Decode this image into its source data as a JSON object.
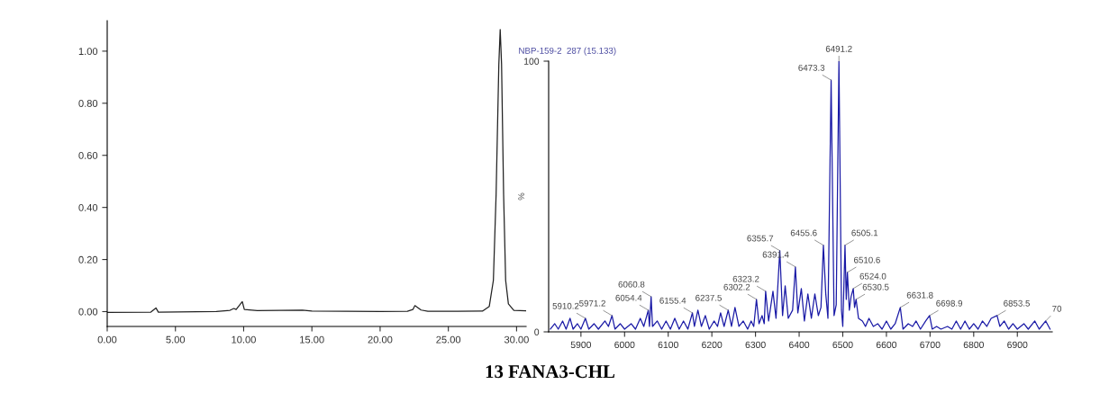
{
  "chart_data": [
    {
      "type": "line",
      "xlim": [
        0,
        30.7
      ],
      "ylim": [
        -0.057,
        1.117
      ],
      "xticks": [
        {
          "value": 0,
          "label": "0.00"
        },
        {
          "value": 5,
          "label": "5.00"
        },
        {
          "value": 10,
          "label": "10.00"
        },
        {
          "value": 15,
          "label": "15.00"
        },
        {
          "value": 20,
          "label": "20.00"
        },
        {
          "value": 25,
          "label": "25.00"
        },
        {
          "value": 30,
          "label": "30.00"
        }
      ],
      "yticks": [
        {
          "value": 0,
          "label": "0.00"
        },
        {
          "value": 0.2,
          "label": "0.20"
        },
        {
          "value": 0.4,
          "label": "0.40"
        },
        {
          "value": 0.6,
          "label": "0.60"
        },
        {
          "value": 0.8,
          "label": "0.80"
        },
        {
          "value": 1.0,
          "label": "1.00"
        }
      ],
      "grid": false,
      "legend": false,
      "annotations": [
        "13 FANA3-CHL"
      ],
      "series": [
        {
          "color": "#222222",
          "x": [
            0,
            3.2,
            3.57,
            3.75,
            8,
            9.0,
            9.28,
            9.45,
            9.9,
            10.05,
            11,
            14.3,
            15,
            20,
            22,
            22.4,
            22.55,
            23.0,
            23.5,
            27.5,
            28.0,
            28.3,
            28.5,
            28.7,
            28.8,
            28.9,
            29.05,
            29.2,
            29.4,
            29.8,
            30.7
          ],
          "values": [
            -0.003,
            -0.002,
            0.014,
            -0.002,
            0,
            0.005,
            0.012,
            0.008,
            0.038,
            0.008,
            0.004,
            0.006,
            0.002,
            0.0,
            0.001,
            0.008,
            0.023,
            0.006,
            0.001,
            0.002,
            0.02,
            0.12,
            0.45,
            0.95,
            1.083,
            0.95,
            0.45,
            0.12,
            0.03,
            0.005,
            0.003
          ]
        }
      ]
    },
    {
      "type": "line",
      "title": "NBP-159-2  287 (15.133)",
      "ylabel": "%",
      "xlim": [
        5826,
        6980
      ],
      "ylim": [
        0,
        100
      ],
      "xticks": [
        5900,
        6000,
        6100,
        6200,
        6300,
        6400,
        6500,
        6600,
        6700,
        6800,
        6900
      ],
      "yticks": [
        0,
        100
      ],
      "grid": false,
      "legend": false,
      "annotations": [
        {
          "text": "5910.2",
          "x": 5910.2,
          "y": 5
        },
        {
          "text": "5971.2",
          "x": 5971.2,
          "y": 6
        },
        {
          "text": "6054.4",
          "x": 6054.4,
          "y": 8
        },
        {
          "text": "6060.8",
          "x": 6060.8,
          "y": 13
        },
        {
          "text": "6155.4",
          "x": 6155.4,
          "y": 7
        },
        {
          "text": "6237.5",
          "x": 6237.5,
          "y": 8
        },
        {
          "text": "6302.2",
          "x": 6302.2,
          "y": 12
        },
        {
          "text": "6323.2",
          "x": 6323.2,
          "y": 15
        },
        {
          "text": "6355.7",
          "x": 6355.7,
          "y": 30
        },
        {
          "text": "6391.4",
          "x": 6391.4,
          "y": 24
        },
        {
          "text": "6455.6",
          "x": 6455.6,
          "y": 32
        },
        {
          "text": "6473.3",
          "x": 6473.3,
          "y": 93
        },
        {
          "text": "6491.2",
          "x": 6491.2,
          "y": 100
        },
        {
          "text": "6505.1",
          "x": 6505.1,
          "y": 32
        },
        {
          "text": "6510.6",
          "x": 6510.6,
          "y": 22
        },
        {
          "text": "6524.0",
          "x": 6524.0,
          "y": 16
        },
        {
          "text": "6530.5",
          "x": 6530.5,
          "y": 12
        },
        {
          "text": "6631.8",
          "x": 6631.8,
          "y": 9
        },
        {
          "text": "6698.9",
          "x": 6698.9,
          "y": 6
        },
        {
          "text": "6853.5",
          "x": 6853.5,
          "y": 6
        },
        {
          "text": "70",
          "x": 6965,
          "y": 4
        }
      ],
      "series": [
        {
          "color": "#1a1aa6",
          "x": [
            5830,
            5840,
            5848,
            5858,
            5866,
            5875,
            5882,
            5892,
            5900,
            5910.2,
            5918,
            5930,
            5940,
            5955,
            5963,
            5971.2,
            5978,
            5990,
            6000,
            6015,
            6025,
            6036,
            6044,
            6054.4,
            6057,
            6060.8,
            6064,
            6075,
            6085,
            6095,
            6105,
            6115,
            6125,
            6135,
            6145,
            6155.4,
            6160,
            6168,
            6176,
            6185,
            6194,
            6205,
            6213,
            6220,
            6228,
            6237.5,
            6245,
            6253,
            6262,
            6272,
            6282,
            6290,
            6296,
            6302.2,
            6308,
            6315,
            6320,
            6323.2,
            6330,
            6340,
            6347,
            6355.7,
            6362,
            6368,
            6375,
            6385,
            6391.4,
            6397,
            6405,
            6412,
            6420,
            6428,
            6436,
            6444,
            6450,
            6455.6,
            6461,
            6466,
            6473.3,
            6480,
            6485,
            6491.2,
            6497,
            6500,
            6505.1,
            6508,
            6510.6,
            6515,
            6519,
            6524.0,
            6527,
            6530.5,
            6536,
            6545,
            6552,
            6560,
            6570,
            6580,
            6590,
            6600,
            6610,
            6620,
            6631.8,
            6638,
            6650,
            6660,
            6668,
            6678,
            6690,
            6698.9,
            6705,
            6715,
            6725,
            6740,
            6750,
            6760,
            6770,
            6780,
            6790,
            6800,
            6810,
            6820,
            6830,
            6840,
            6853.5,
            6860,
            6870,
            6880,
            6890,
            6900,
            6915,
            6925,
            6940,
            6950,
            6965,
            6975
          ],
          "values": [
            1,
            3,
            1,
            4,
            1,
            5,
            1,
            3,
            1,
            5,
            1,
            3,
            1,
            4,
            2,
            6,
            1,
            3,
            1,
            3,
            1,
            5,
            2,
            8,
            2,
            13,
            2,
            4,
            1,
            4,
            1,
            5,
            1,
            4,
            1,
            7,
            2,
            8,
            2,
            6,
            1,
            4,
            2,
            7,
            2,
            8,
            2,
            9,
            2,
            4,
            1,
            4,
            2,
            12,
            3,
            6,
            3,
            15,
            4,
            15,
            5,
            30,
            6,
            17,
            5,
            8,
            24,
            7,
            16,
            4,
            14,
            5,
            14,
            6,
            9,
            32,
            14,
            5,
            93,
            6,
            10,
            100,
            8,
            2,
            32,
            12,
            22,
            8,
            13,
            16,
            9,
            12,
            5,
            4,
            2,
            5,
            2,
            3,
            1,
            4,
            1,
            3,
            9,
            1,
            3,
            2,
            4,
            1,
            4,
            6,
            1,
            2,
            1,
            2,
            1,
            4,
            1,
            4,
            1,
            3,
            1,
            4,
            2,
            5,
            6,
            2,
            4,
            1,
            3,
            1,
            3,
            1,
            4,
            1,
            4,
            1
          ]
        }
      ]
    }
  ]
}
